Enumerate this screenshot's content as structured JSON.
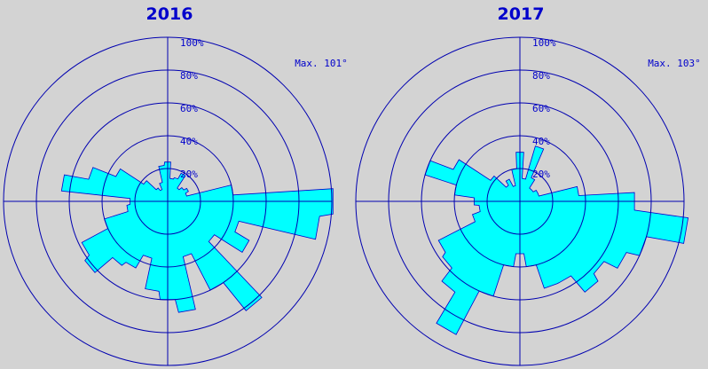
{
  "colors": {
    "background": "#d3d3d3",
    "axis": "#0000b0",
    "fill": "#00ffff",
    "outline": "#0000cc",
    "title": "#0000cc",
    "text": "#0000cc"
  },
  "chart_data": [
    {
      "type": "polar-area",
      "title": "2016",
      "max_label": "Max. 101°",
      "rings": [
        20,
        40,
        60,
        80,
        100
      ],
      "tick_labels": [
        "20%",
        "40%",
        "60%",
        "80%",
        "100%"
      ],
      "rmax": 100,
      "directions_deg": [
        0,
        10,
        20,
        30,
        40,
        50,
        60,
        70,
        80,
        90,
        100,
        110,
        120,
        130,
        140,
        150,
        160,
        170,
        180,
        190,
        200,
        210,
        220,
        230,
        240,
        250,
        260,
        270,
        280,
        290,
        300,
        310,
        320,
        330,
        340,
        350
      ],
      "values": [
        24,
        14,
        15,
        19,
        10,
        12,
        14,
        12,
        40,
        101,
        93,
        45,
        55,
        35,
        82,
        60,
        35,
        68,
        60,
        55,
        36,
        45,
        48,
        62,
        58,
        40,
        25,
        23,
        65,
        50,
        35,
        18,
        10,
        8,
        12,
        22
      ]
    },
    {
      "type": "polar-area",
      "title": "2017",
      "max_label": "Max. 103°",
      "rings": [
        20,
        40,
        60,
        80,
        100
      ],
      "tick_labels": [
        "20%",
        "40%",
        "60%",
        "80%",
        "100%"
      ],
      "rmax": 100,
      "directions_deg": [
        0,
        10,
        20,
        30,
        40,
        50,
        60,
        70,
        80,
        90,
        100,
        110,
        120,
        130,
        140,
        150,
        160,
        170,
        180,
        190,
        200,
        210,
        220,
        230,
        240,
        250,
        260,
        270,
        280,
        290,
        300,
        310,
        320,
        330,
        340,
        350
      ],
      "values": [
        30,
        14,
        35,
        16,
        10,
        10,
        12,
        12,
        36,
        70,
        103,
        80,
        72,
        63,
        68,
        55,
        55,
        40,
        32,
        40,
        60,
        90,
        68,
        58,
        55,
        30,
        25,
        28,
        40,
        60,
        45,
        22,
        12,
        15,
        10,
        20
      ]
    }
  ]
}
